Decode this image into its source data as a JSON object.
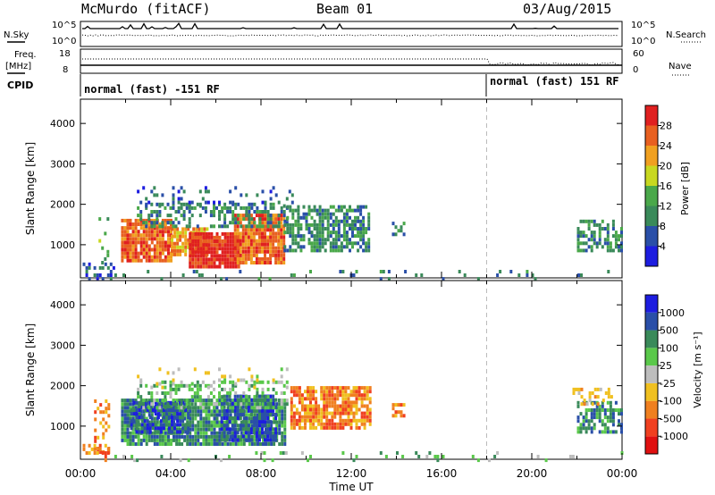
{
  "header": {
    "station": "McMurdo (fitACF)",
    "beam": "Beam 01",
    "date": "03/Aug/2015"
  },
  "noise_panel": {
    "left_label": "N.Sky",
    "right_label": "N.Search",
    "tick_top": "10^5",
    "tick_bottom": "10^0"
  },
  "freq_panel": {
    "left_label_top": "Freq.",
    "left_label_unit": "[MHz]",
    "left_ticks": [
      "18",
      "8"
    ],
    "right_ticks": [
      "60",
      "0"
    ],
    "right_label": "Nave"
  },
  "cpid": {
    "label": "CPID",
    "segments": [
      "normal (fast) -151 RF",
      "normal (fast) 151 RF"
    ],
    "switch_hour": 18
  },
  "chart_data": [
    {
      "type": "heatmap",
      "title": "",
      "xlabel": "",
      "ylabel": "Slant Range [km]",
      "xlim": [
        0,
        24
      ],
      "ylim": [
        180,
        4600
      ],
      "y_ticks": [
        "1000",
        "2000",
        "3000",
        "4000"
      ],
      "colorbar": {
        "label": "Power [dB]",
        "ticks": [
          "4",
          "8",
          "12",
          "16",
          "20",
          "24",
          "28"
        ],
        "colors": [
          "#1d1de0",
          "#2a4fa8",
          "#3a8a5a",
          "#4aa84a",
          "#c8d820",
          "#f0a020",
          "#e86020",
          "#e02020"
        ]
      },
      "blobs": [
        {
          "x0": 0.8,
          "x1": 1.2,
          "y0": 600,
          "y1": 1700,
          "v": 3,
          "d": 0.25
        },
        {
          "x0": 1.8,
          "x1": 4.0,
          "y0": 650,
          "y1": 1700,
          "v": 6,
          "d": 0.9
        },
        {
          "x0": 4.0,
          "x1": 5.6,
          "y0": 800,
          "y1": 1500,
          "v": 5,
          "d": 0.85
        },
        {
          "x0": 4.8,
          "x1": 7.0,
          "y0": 500,
          "y1": 1400,
          "v": 7,
          "d": 0.95
        },
        {
          "x0": 6.8,
          "x1": 9.0,
          "y0": 600,
          "y1": 1800,
          "v": 6,
          "d": 0.9
        },
        {
          "x0": 2.5,
          "x1": 9.2,
          "y0": 1500,
          "y1": 2100,
          "v": 2,
          "d": 0.45
        },
        {
          "x0": 2.5,
          "x1": 9.5,
          "y0": 2000,
          "y1": 2500,
          "v": 1,
          "d": 0.15
        },
        {
          "x0": 9.0,
          "x1": 12.8,
          "y0": 900,
          "y1": 2000,
          "v": 2,
          "d": 0.65
        },
        {
          "x0": 13.8,
          "x1": 14.3,
          "y0": 1300,
          "y1": 1600,
          "v": 2,
          "d": 0.4
        },
        {
          "x0": 22.0,
          "x1": 24.0,
          "y0": 900,
          "y1": 1700,
          "v": 2,
          "d": 0.55
        },
        {
          "x0": 0.1,
          "x1": 1.5,
          "y0": 200,
          "y1": 600,
          "v": 1,
          "d": 0.35
        },
        {
          "x0": 1.5,
          "x1": 24.0,
          "y0": 200,
          "y1": 450,
          "v": 2,
          "d": 0.07
        }
      ]
    },
    {
      "type": "heatmap",
      "title": "",
      "xlabel": "Time UT",
      "ylabel": "Slant Range [km]",
      "xlim": [
        0,
        24
      ],
      "ylim": [
        180,
        4600
      ],
      "x_ticks": [
        "00:00",
        "04:00",
        "08:00",
        "12:00",
        "16:00",
        "20:00",
        "00:00"
      ],
      "y_ticks": [
        "1000",
        "2000",
        "3000",
        "4000"
      ],
      "colorbar": {
        "label": "Velocity [m s⁻¹]",
        "ticks": [
          "1000",
          "500",
          "100",
          "25",
          "-25",
          "-100",
          "-500",
          "-1000"
        ],
        "colors": [
          "#1d1de0",
          "#2a4fa8",
          "#3a8a5a",
          "#5ac84a",
          "#bdbdbd",
          "#f0c020",
          "#f08020",
          "#f04020",
          "#e01010"
        ]
      },
      "blobs": [
        {
          "x0": 0.6,
          "x1": 1.3,
          "y0": 400,
          "y1": 1700,
          "v": 6,
          "d": 0.3
        },
        {
          "x0": 1.8,
          "x1": 9.0,
          "y0": 600,
          "y1": 1700,
          "v": 2,
          "d": 0.9
        },
        {
          "x0": 2.2,
          "x1": 4.8,
          "y0": 900,
          "y1": 1700,
          "v": 1,
          "d": 0.75
        },
        {
          "x0": 6.2,
          "x1": 8.6,
          "y0": 700,
          "y1": 1800,
          "v": 1,
          "d": 0.7
        },
        {
          "x0": 2.5,
          "x1": 9.2,
          "y0": 1500,
          "y1": 2200,
          "v": 3,
          "d": 0.4
        },
        {
          "x0": 2.5,
          "x1": 9.5,
          "y0": 2000,
          "y1": 2500,
          "v": 4,
          "d": 0.15
        },
        {
          "x0": 9.3,
          "x1": 12.8,
          "y0": 1000,
          "y1": 2000,
          "v": 6,
          "d": 0.8
        },
        {
          "x0": 13.8,
          "x1": 14.3,
          "y0": 1300,
          "y1": 1600,
          "v": 6,
          "d": 0.4
        },
        {
          "x0": 22.0,
          "x1": 24.0,
          "y0": 900,
          "y1": 1700,
          "v": 2,
          "d": 0.6
        },
        {
          "x0": 21.8,
          "x1": 23.5,
          "y0": 1500,
          "y1": 2000,
          "v": 5,
          "d": 0.3
        },
        {
          "x0": 0.1,
          "x1": 1.2,
          "y0": 200,
          "y1": 600,
          "v": 6,
          "d": 0.4
        },
        {
          "x0": 1.5,
          "x1": 24.0,
          "y0": 200,
          "y1": 450,
          "v": 3,
          "d": 0.07
        }
      ]
    }
  ]
}
